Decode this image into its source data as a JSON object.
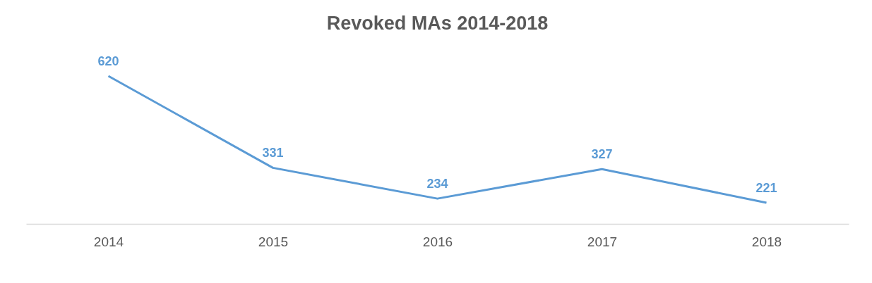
{
  "chart_data": {
    "type": "line",
    "title": "Revoked MAs 2014-2018",
    "categories": [
      "2014",
      "2015",
      "2016",
      "2017",
      "2018"
    ],
    "series": [
      {
        "color": "#5b9bd5",
        "values": [
          620,
          331,
          234,
          327,
          221
        ]
      }
    ],
    "data_labels": true,
    "grid": false,
    "marker": "none",
    "line_style": "solid",
    "tick_labels": "x"
  }
}
